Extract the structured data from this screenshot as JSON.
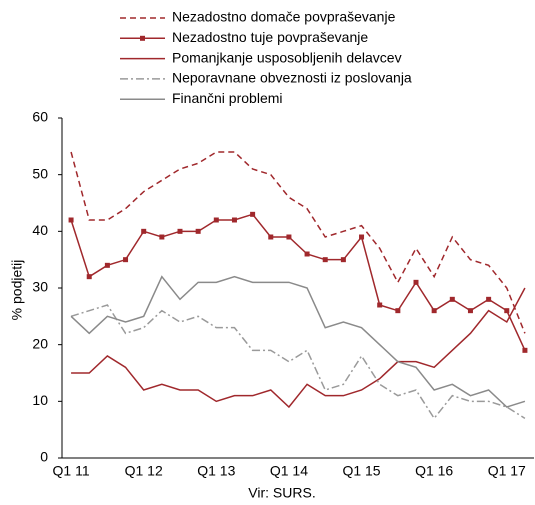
{
  "chart_data": {
    "type": "line",
    "y_label": "% podjetij",
    "note": "Vir: SURS.",
    "categories": [
      "Q1 11",
      null,
      null,
      null,
      "Q1 12",
      null,
      null,
      null,
      "Q1 13",
      null,
      null,
      null,
      "Q1 14",
      null,
      null,
      null,
      "Q1 15",
      null,
      null,
      null,
      "Q1 16",
      null,
      null,
      null,
      "Q1 17",
      null
    ],
    "ylim": [
      0,
      60
    ],
    "yticks": [
      0,
      10,
      20,
      30,
      40,
      50,
      60
    ],
    "grid": false,
    "series": [
      {
        "name": "Nezadostno domače povpraševanje",
        "color": "#a0282c",
        "style": "dashed",
        "values": [
          54,
          42,
          42,
          44,
          47,
          49,
          51,
          52,
          54,
          54,
          51,
          50,
          46,
          44,
          39,
          40,
          41,
          37,
          31,
          37,
          32,
          39,
          35,
          34,
          30,
          22
        ]
      },
      {
        "name": "Nezadostno tuje povpraševanje",
        "color": "#a0282c",
        "style": "solid",
        "marker": "square",
        "values": [
          42,
          32,
          34,
          35,
          40,
          39,
          40,
          40,
          42,
          42,
          43,
          39,
          39,
          36,
          35,
          35,
          39,
          27,
          26,
          31,
          26,
          28,
          26,
          28,
          26,
          19
        ]
      },
      {
        "name": "Pomanjkanje usposobljenih delavcev",
        "color": "#a0282c",
        "style": "solid",
        "values": [
          15,
          15,
          18,
          16,
          12,
          13,
          12,
          12,
          10,
          11,
          11,
          12,
          9,
          13,
          11,
          11,
          12,
          14,
          17,
          17,
          16,
          19,
          22,
          26,
          24,
          30
        ]
      },
      {
        "name": "Neporavnane obveznosti iz poslovanja",
        "color": "#9a9a9a",
        "style": "dashdot",
        "values": [
          25,
          26,
          27,
          22,
          23,
          26,
          24,
          25,
          23,
          23,
          19,
          19,
          17,
          19,
          12,
          13,
          18,
          13,
          11,
          12,
          7,
          11,
          10,
          10,
          9,
          7
        ]
      },
      {
        "name": "Finančni problemi",
        "color": "#8a8a8a",
        "style": "solid",
        "values": [
          25,
          22,
          25,
          24,
          25,
          32,
          28,
          31,
          31,
          32,
          31,
          31,
          31,
          30,
          23,
          24,
          23,
          20,
          17,
          16,
          12,
          13,
          11,
          12,
          9,
          10
        ]
      }
    ]
  }
}
